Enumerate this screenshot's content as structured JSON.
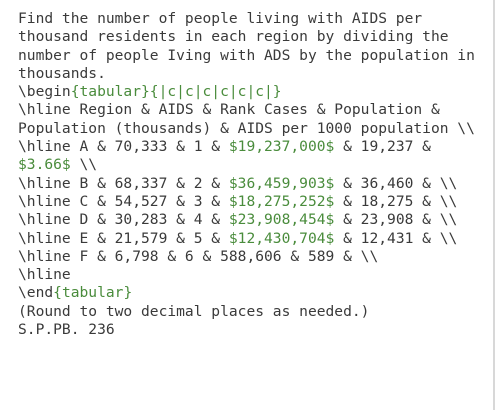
{
  "lines": [
    [
      {
        "text": "Find the number of people living with AIDS per"
      }
    ],
    [
      {
        "text": "thousand residents in each region by dividing the"
      }
    ],
    [
      {
        "text": "number of people Iving with ADS by the population in"
      }
    ],
    [
      {
        "text": "thousands."
      }
    ],
    [
      {
        "text": "\\begin"
      },
      {
        "text": "{tabular}{|c|c|c|c|c|c|}",
        "highlight": true
      }
    ],
    [
      {
        "text": "\\hline Region & AIDS & Rank Cases & Population &"
      }
    ],
    [
      {
        "text": "Population (thousands) & AIDS per 1000 population \\\\"
      }
    ],
    [
      {
        "text": "\\hline A & 70,333 & 1 & "
      },
      {
        "text": "$19,237,000$",
        "highlight": true
      },
      {
        "text": " & 19,237 &"
      }
    ],
    [
      {
        "text": "$3.66$",
        "highlight": true
      },
      {
        "text": " \\\\"
      }
    ],
    [
      {
        "text": "\\hline B & 68,337 & 2 & "
      },
      {
        "text": "$36,459,903$",
        "highlight": true
      },
      {
        "text": " & 36,460 & \\\\"
      }
    ],
    [
      {
        "text": "\\hline C & 54,527 & 3 & "
      },
      {
        "text": "$18,275,252$",
        "highlight": true
      },
      {
        "text": " & 18,275 & \\\\"
      }
    ],
    [
      {
        "text": "\\hline D & 30,283 & 4 & "
      },
      {
        "text": "$23,908,454$",
        "highlight": true
      },
      {
        "text": " & 23,908 & \\\\"
      }
    ],
    [
      {
        "text": "\\hline E & 21,579 & 5 & "
      },
      {
        "text": "$12,430,704$",
        "highlight": true
      },
      {
        "text": " & 12,431 & \\\\"
      }
    ],
    [
      {
        "text": "\\hline F & 6,798 & 6 & 588,606 & 589 & \\\\"
      }
    ],
    [
      {
        "text": "\\hline"
      }
    ],
    [
      {
        "text": "\\end"
      },
      {
        "text": "{tabular}",
        "highlight": true
      }
    ],
    [
      {
        "text": "(Round to two decimal places as needed.)"
      }
    ],
    [
      {
        "text": "S.P.PB. 236"
      }
    ]
  ]
}
